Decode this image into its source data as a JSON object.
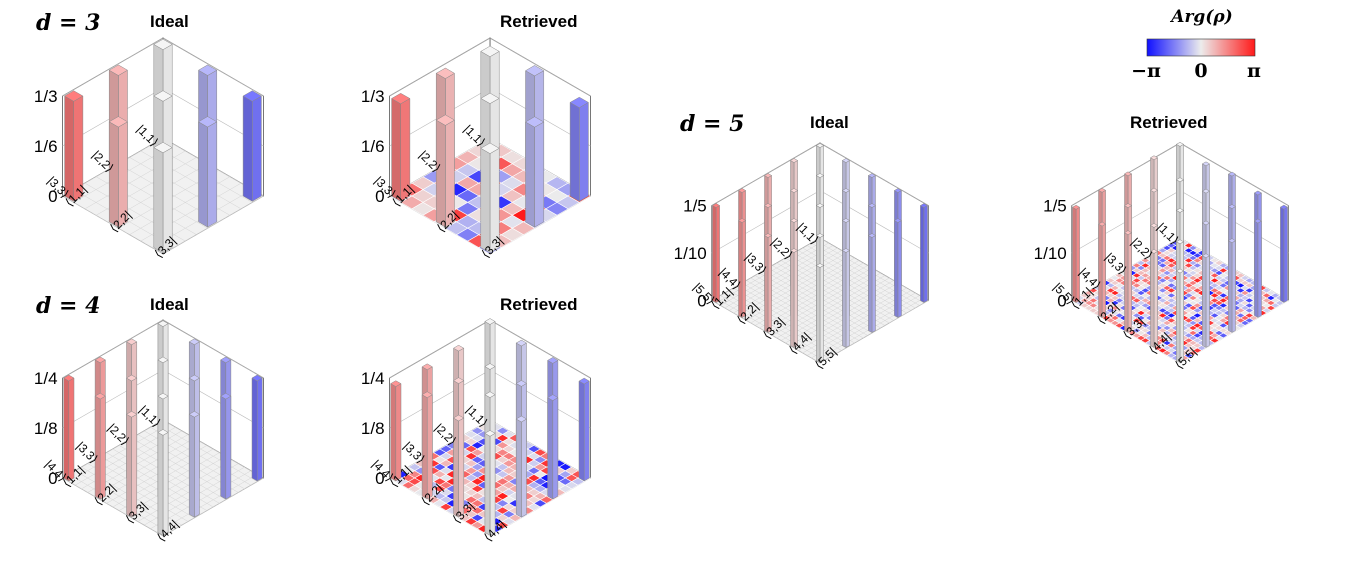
{
  "colorbar": {
    "title": "Arg(ρ)",
    "min_label": "−π",
    "mid_label": "0",
    "max_label": "π",
    "colors": {
      "neg": "#1010ff",
      "zero": "#ececec",
      "pos": "#ff1a1a"
    }
  },
  "groups": [
    {
      "heading": "d = 3"
    },
    {
      "heading": "d = 4"
    },
    {
      "heading": "d = 5"
    }
  ],
  "chart_data": [
    {
      "type": "bar3d",
      "d": 3,
      "title": "Ideal",
      "zticks": [
        "0",
        "1/6",
        "1/3"
      ],
      "zlim": [
        0,
        0.3333
      ],
      "row_labels": [
        "|1,1⟩",
        "|2,2⟩",
        "|3,3⟩"
      ],
      "col_labels": [
        "⟨1,1|",
        "⟨2,2|",
        "⟨3,3|"
      ],
      "magnitude": 0.3333,
      "noise": false
    },
    {
      "type": "bar3d",
      "d": 3,
      "title": "Retrieved",
      "zticks": [
        "0",
        "1/6",
        "1/3"
      ],
      "zlim": [
        0,
        0.3333
      ],
      "row_labels": [
        "|1,1⟩",
        "|2,2⟩",
        "|3,3⟩"
      ],
      "col_labels": [
        "⟨1,1|",
        "⟨2,2|",
        "⟨3,3|"
      ],
      "magnitude": 0.3333,
      "noise": true
    },
    {
      "type": "bar3d",
      "d": 4,
      "title": "Ideal",
      "zticks": [
        "0",
        "1/8",
        "1/4"
      ],
      "zlim": [
        0,
        0.25
      ],
      "row_labels": [
        "|1,1⟩",
        "|2,2⟩",
        "|3,3⟩",
        "|4,4⟩"
      ],
      "col_labels": [
        "⟨1,1|",
        "⟨2,2|",
        "⟨3,3|",
        "⟨4,4|"
      ],
      "magnitude": 0.25,
      "noise": false
    },
    {
      "type": "bar3d",
      "d": 4,
      "title": "Retrieved",
      "zticks": [
        "0",
        "1/8",
        "1/4"
      ],
      "zlim": [
        0,
        0.25
      ],
      "row_labels": [
        "|1,1⟩",
        "|2,2⟩",
        "|3,3⟩",
        "|4,4⟩"
      ],
      "col_labels": [
        "⟨1,1|",
        "⟨2,2|",
        "⟨3,3|",
        "⟨4,4|"
      ],
      "magnitude": 0.25,
      "noise": true
    },
    {
      "type": "bar3d",
      "d": 5,
      "title": "Ideal",
      "zticks": [
        "0",
        "1/10",
        "1/5"
      ],
      "zlim": [
        0,
        0.2
      ],
      "row_labels": [
        "|1,1⟩",
        "|2,2⟩",
        "|3,3⟩",
        "|4,4⟩",
        "|5,5⟩"
      ],
      "col_labels": [
        "⟨1,1|",
        "⟨2,2|",
        "⟨3,3|",
        "⟨4,4|",
        "⟨5,5|"
      ],
      "magnitude": 0.2,
      "noise": false
    },
    {
      "type": "bar3d",
      "d": 5,
      "title": "Retrieved",
      "zticks": [
        "0",
        "1/10",
        "1/5"
      ],
      "zlim": [
        0,
        0.2
      ],
      "row_labels": [
        "|1,1⟩",
        "|2,2⟩",
        "|3,3⟩",
        "|4,4⟩",
        "|5,5⟩"
      ],
      "col_labels": [
        "⟨1,1|",
        "⟨2,2|",
        "⟨3,3|",
        "⟨4,4|",
        "⟨5,5|"
      ],
      "magnitude": 0.2,
      "noise": true
    }
  ]
}
